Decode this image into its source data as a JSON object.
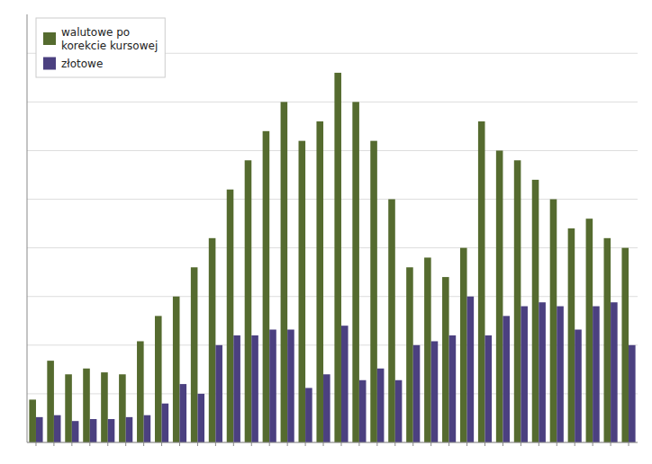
{
  "chart_data": {
    "type": "bar",
    "categories": [
      null,
      null,
      null,
      null,
      null,
      null,
      null,
      null,
      null,
      null,
      null,
      null,
      null,
      null,
      null,
      null,
      null,
      null,
      null,
      null,
      null,
      null,
      null,
      null,
      null,
      null,
      null,
      null,
      null,
      null,
      null,
      null,
      null,
      null
    ],
    "series": [
      {
        "name": "walutowe po\nkorekcie kursowej",
        "color": "#556B2F",
        "values": [
          2.2,
          4.2,
          3.5,
          3.8,
          3.6,
          3.5,
          5.2,
          6.5,
          7.5,
          9.0,
          10.5,
          13.0,
          14.5,
          16.0,
          17.5,
          15.5,
          16.5,
          19.0,
          17.5,
          15.5,
          12.5,
          9.0,
          9.5,
          8.5,
          10.0,
          16.5,
          15.0,
          14.5,
          13.5,
          12.5,
          11.0,
          11.5,
          10.5,
          10.0
        ]
      },
      {
        "name": "złotowe",
        "color": "#4B4080",
        "values": [
          1.3,
          1.4,
          1.1,
          1.2,
          1.2,
          1.3,
          1.4,
          2.0,
          3.0,
          2.5,
          5.0,
          5.5,
          5.5,
          5.8,
          5.8,
          2.8,
          3.5,
          6.0,
          3.2,
          3.8,
          3.2,
          5.0,
          5.2,
          5.5,
          7.5,
          5.5,
          6.5,
          7.0,
          7.2,
          7.0,
          5.8,
          7.0,
          7.2,
          5.0
        ]
      }
    ],
    "ylim": [
      0,
      22
    ],
    "yticks": [
      0,
      2.5,
      5,
      7.5,
      10,
      12.5,
      15,
      17.5,
      20
    ],
    "grid": true,
    "legend": "upper left",
    "tick_labels": false
  }
}
